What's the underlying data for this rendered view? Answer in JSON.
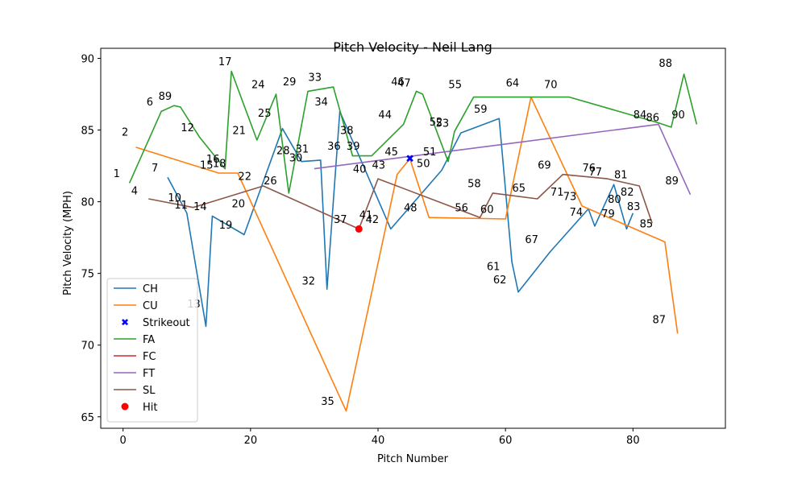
{
  "chart_data": {
    "type": "line",
    "title": "Pitch Velocity - Neil Lang",
    "xlabel": "Pitch Number",
    "ylabel": "Pitch Velocity (MPH)",
    "xlim": [
      -3.5,
      94.5
    ],
    "ylim": [
      64.2,
      90.7
    ],
    "xticks": [
      0,
      20,
      40,
      60,
      80
    ],
    "yticks": [
      65,
      70,
      75,
      80,
      85,
      90
    ],
    "grid": false,
    "legend_position": "lower-left",
    "colors": {
      "CH": "#1f77b4",
      "CU": "#ff7f0e",
      "Strikeout": "#0000ff",
      "FA": "#2ca02c",
      "FC": "#d62728",
      "FT": "#9467bd",
      "SL": "#8c564b",
      "Hit": "#ff0000"
    },
    "legend": [
      {
        "label": "CH",
        "kind": "line",
        "color": "#1f77b4"
      },
      {
        "label": "CU",
        "kind": "line",
        "color": "#ff7f0e"
      },
      {
        "label": "Strikeout",
        "kind": "x-marker",
        "color": "#0000ff"
      },
      {
        "label": "FA",
        "kind": "line",
        "color": "#2ca02c"
      },
      {
        "label": "FC",
        "kind": "line",
        "color": "#d62728"
      },
      {
        "label": "FT",
        "kind": "line",
        "color": "#9467bd"
      },
      {
        "label": "SL",
        "kind": "line",
        "color": "#8c564b"
      },
      {
        "label": "Hit",
        "kind": "dot-marker",
        "color": "#ff0000"
      }
    ],
    "series": [
      {
        "name": "CH",
        "x": [
          7,
          10,
          13,
          14,
          19,
          25,
          28,
          31,
          32,
          34,
          42,
          50,
          53,
          59,
          61,
          62,
          67,
          73,
          74,
          77,
          79,
          80
        ],
        "y": [
          81.7,
          79.2,
          71.3,
          79.0,
          77.7,
          85.1,
          82.8,
          82.9,
          73.9,
          86.3,
          78.1,
          82.2,
          84.8,
          85.8,
          75.8,
          73.7,
          76.5,
          79.5,
          78.3,
          81.2,
          78.1,
          79.2
        ]
      },
      {
        "name": "CU",
        "x": [
          2,
          15,
          18,
          35,
          43,
          45,
          48,
          60,
          64,
          72,
          85,
          87
        ],
        "y": [
          83.8,
          82.0,
          82.0,
          65.4,
          81.9,
          83.0,
          78.9,
          78.8,
          87.3,
          79.7,
          77.2,
          70.8
        ]
      },
      {
        "name": "FA",
        "x": [
          1,
          6,
          8,
          9,
          12,
          16,
          17,
          21,
          24,
          26,
          29,
          33,
          36,
          39,
          44,
          46,
          47,
          51,
          52,
          55,
          70,
          84,
          86,
          88,
          90
        ],
        "y": [
          81.3,
          86.3,
          86.7,
          86.6,
          84.5,
          82.3,
          89.1,
          84.3,
          87.5,
          80.6,
          87.7,
          88.0,
          83.2,
          83.2,
          85.4,
          87.7,
          87.5,
          82.8,
          84.9,
          87.3,
          87.3,
          85.5,
          85.2,
          88.9,
          85.4
        ]
      },
      {
        "name": "FT",
        "x": [
          30,
          84,
          89
        ],
        "y": [
          82.3,
          85.4,
          80.5
        ]
      },
      {
        "name": "SL",
        "x": [
          4,
          11,
          22,
          37,
          40,
          56,
          58,
          65,
          69,
          76,
          81,
          83
        ],
        "y": [
          80.2,
          79.6,
          81.1,
          78.1,
          81.6,
          78.9,
          80.6,
          80.2,
          81.9,
          81.6,
          81.1,
          78.5
        ]
      }
    ],
    "markers": [
      {
        "name": "Strikeout",
        "x": 45,
        "y": 83.0
      },
      {
        "name": "Hit",
        "x": 37,
        "y": 78.1
      }
    ],
    "annotations": [
      {
        "text": "1",
        "x": -1,
        "y": 82.0
      },
      {
        "text": "2",
        "x": 0.3,
        "y": 84.9
      },
      {
        "text": "4",
        "x": 1.8,
        "y": 80.8
      },
      {
        "text": "6",
        "x": 4.2,
        "y": 87.0
      },
      {
        "text": "7",
        "x": 5.0,
        "y": 82.4
      },
      {
        "text": "89",
        "x": 6.6,
        "y": 87.4
      },
      {
        "text": "10",
        "x": 8.1,
        "y": 80.3
      },
      {
        "text": "11",
        "x": 9.1,
        "y": 79.8
      },
      {
        "text": "12",
        "x": 10.1,
        "y": 85.2
      },
      {
        "text": "13",
        "x": 11.1,
        "y": 72.9
      },
      {
        "text": "14",
        "x": 12.1,
        "y": 79.7
      },
      {
        "text": "15",
        "x": 13.1,
        "y": 82.6
      },
      {
        "text": "16",
        "x": 14.1,
        "y": 83.0
      },
      {
        "text": "18",
        "x": 15.1,
        "y": 82.7
      },
      {
        "text": "17",
        "x": 16.0,
        "y": 89.8
      },
      {
        "text": "19",
        "x": 16.1,
        "y": 78.4
      },
      {
        "text": "20",
        "x": 18.1,
        "y": 79.9
      },
      {
        "text": "21",
        "x": 18.2,
        "y": 85.0
      },
      {
        "text": "22",
        "x": 19.1,
        "y": 81.8
      },
      {
        "text": "24",
        "x": 21.2,
        "y": 88.2
      },
      {
        "text": "25",
        "x": 22.2,
        "y": 86.2
      },
      {
        "text": "26",
        "x": 23.1,
        "y": 81.5
      },
      {
        "text": "28",
        "x": 25.1,
        "y": 83.6
      },
      {
        "text": "29",
        "x": 26.1,
        "y": 88.4
      },
      {
        "text": "30",
        "x": 27.1,
        "y": 83.1
      },
      {
        "text": "31",
        "x": 28.1,
        "y": 83.7
      },
      {
        "text": "32",
        "x": 29.1,
        "y": 74.5
      },
      {
        "text": "33",
        "x": 30.1,
        "y": 88.7
      },
      {
        "text": "34",
        "x": 31.1,
        "y": 87.0
      },
      {
        "text": "35",
        "x": 32.1,
        "y": 66.1
      },
      {
        "text": "36",
        "x": 33.1,
        "y": 83.9
      },
      {
        "text": "37",
        "x": 34.1,
        "y": 78.8
      },
      {
        "text": "38",
        "x": 35.1,
        "y": 85.0
      },
      {
        "text": "39",
        "x": 36.1,
        "y": 83.9
      },
      {
        "text": "40",
        "x": 37.1,
        "y": 82.3
      },
      {
        "text": "41",
        "x": 38.1,
        "y": 79.1
      },
      {
        "text": "42",
        "x": 39.1,
        "y": 78.8
      },
      {
        "text": "43",
        "x": 40.1,
        "y": 82.6
      },
      {
        "text": "44",
        "x": 41.1,
        "y": 86.1
      },
      {
        "text": "45",
        "x": 42.1,
        "y": 83.5
      },
      {
        "text": "46",
        "x": 43.1,
        "y": 88.4
      },
      {
        "text": "47",
        "x": 44.1,
        "y": 88.3
      },
      {
        "text": "48",
        "x": 45.1,
        "y": 79.6
      },
      {
        "text": "50",
        "x": 47.1,
        "y": 82.7
      },
      {
        "text": "51",
        "x": 48.1,
        "y": 83.5
      },
      {
        "text": "52",
        "x": 49.1,
        "y": 85.6
      },
      {
        "text": "53",
        "x": 50.1,
        "y": 85.5
      },
      {
        "text": "55",
        "x": 52.1,
        "y": 88.2
      },
      {
        "text": "56",
        "x": 53.1,
        "y": 79.6
      },
      {
        "text": "58",
        "x": 55.1,
        "y": 81.3
      },
      {
        "text": "59",
        "x": 56.1,
        "y": 86.5
      },
      {
        "text": "60",
        "x": 57.1,
        "y": 79.5
      },
      {
        "text": "61",
        "x": 58.1,
        "y": 75.5
      },
      {
        "text": "62",
        "x": 59.1,
        "y": 74.6
      },
      {
        "text": "64",
        "x": 61.1,
        "y": 88.3
      },
      {
        "text": "65",
        "x": 62.1,
        "y": 81.0
      },
      {
        "text": "67",
        "x": 64.1,
        "y": 77.4
      },
      {
        "text": "69",
        "x": 66.1,
        "y": 82.6
      },
      {
        "text": "70",
        "x": 67.1,
        "y": 88.2
      },
      {
        "text": "71",
        "x": 68.1,
        "y": 80.7
      },
      {
        "text": "73",
        "x": 70.1,
        "y": 80.4
      },
      {
        "text": "74",
        "x": 71.1,
        "y": 79.3
      },
      {
        "text": "76",
        "x": 73.1,
        "y": 82.4
      },
      {
        "text": "77",
        "x": 74.1,
        "y": 82.1
      },
      {
        "text": "79",
        "x": 76.1,
        "y": 79.2
      },
      {
        "text": "80",
        "x": 77.1,
        "y": 80.2
      },
      {
        "text": "81",
        "x": 78.1,
        "y": 81.9
      },
      {
        "text": "82",
        "x": 79.1,
        "y": 80.7
      },
      {
        "text": "83",
        "x": 80.1,
        "y": 79.7
      },
      {
        "text": "84",
        "x": 81.1,
        "y": 86.1
      },
      {
        "text": "85",
        "x": 82.1,
        "y": 78.5
      },
      {
        "text": "86",
        "x": 83.1,
        "y": 85.9
      },
      {
        "text": "87",
        "x": 84.1,
        "y": 71.8
      },
      {
        "text": "88",
        "x": 85.1,
        "y": 89.7
      },
      {
        "text": "89",
        "x": 86.1,
        "y": 81.5
      },
      {
        "text": "90",
        "x": 87.1,
        "y": 86.1
      }
    ]
  }
}
